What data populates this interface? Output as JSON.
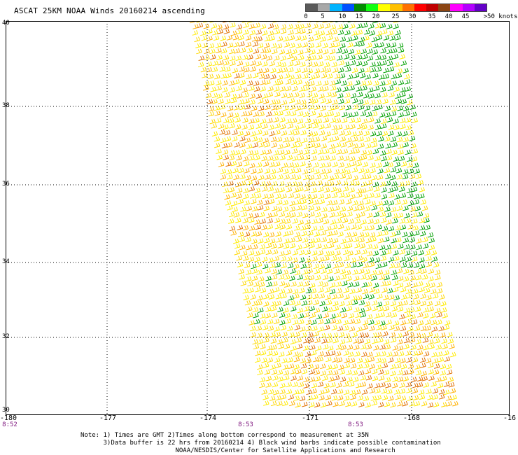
{
  "title": "ASCAT 25KM NOAA Winds 20160214 ascending",
  "legend": {
    "labels": [
      "0",
      "5",
      "10",
      "15",
      "20",
      "25",
      "30",
      "35",
      "40",
      "45",
      ">50 knots"
    ],
    "colors": [
      "#5a5a5a",
      "#a8a8a8",
      "#00b4ff",
      "#0050ff",
      "#008c00",
      "#10ff10",
      "#ffff00",
      "#ffc000",
      "#ff7000",
      "#ff0000",
      "#c00000",
      "#8b4513",
      "#ff00ff",
      "#b400ff",
      "#6400c8"
    ]
  },
  "map": {
    "lat_labels": [
      "40",
      "38",
      "36",
      "34",
      "32",
      "30"
    ],
    "lon_labels": [
      "-180",
      "-177",
      "-174",
      "-171",
      "-168",
      "-16"
    ],
    "time_labels": [
      "8:52",
      "8:53",
      "8:53"
    ]
  },
  "notes": {
    "line1": "Note: 1) Times are GMT 2)Times along bottom correspond to measurement at 35N",
    "line2": "      3)Data buffer is 22 hrs from 20160214 4) Black wind barbs indicate possible contamination",
    "line3": "                         NOAA/NESDIS/Center for Satellite Applications and Research"
  }
}
